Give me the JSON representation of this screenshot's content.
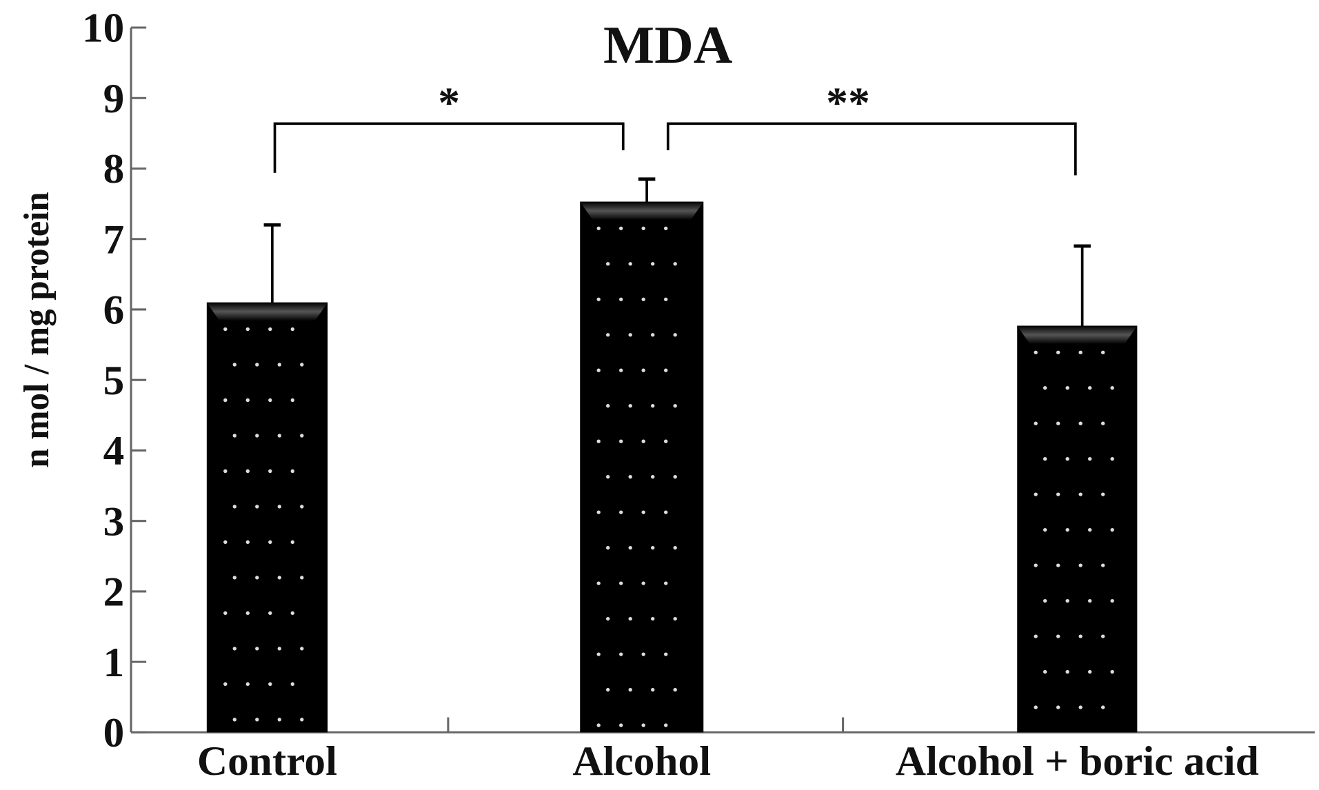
{
  "chart_data": {
    "type": "bar",
    "title": "MDA",
    "xlabel": "",
    "ylabel": "n mol / mg protein",
    "ylim": [
      0,
      10
    ],
    "yticks": [
      "0",
      "1",
      "2",
      "3",
      "4",
      "5",
      "6",
      "7",
      "8",
      "9",
      "10"
    ],
    "categories": [
      "Control",
      "Alcohol",
      "Alcohol + boric acid"
    ],
    "values": [
      6.1,
      7.53,
      5.77
    ],
    "error_upper": [
      7.2,
      7.85,
      6.9
    ],
    "grid": false,
    "bar_color": "#000000",
    "significance": [
      {
        "from": 0,
        "to": 1,
        "label": "*"
      },
      {
        "from": 1,
        "to": 2,
        "label": "**"
      }
    ]
  }
}
